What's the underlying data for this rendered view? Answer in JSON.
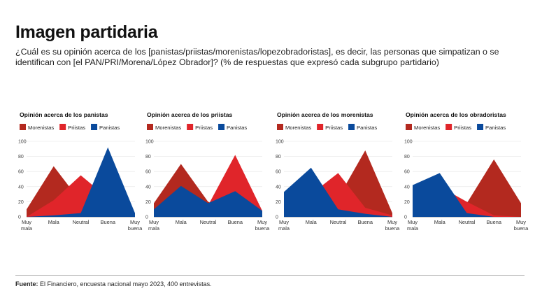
{
  "header": {
    "title": "Imagen partidaria",
    "subtitle": "¿Cuál es su opinión acerca de los [panistas/priistas/morenistas/lopezobradoristas], es decir, las personas que simpatizan o se identifican con [el PAN/PRI/Morena/López Obrador]? (% de respuestas que expresó cada subgrupo partidario)"
  },
  "footer": {
    "source_label": "Fuente:",
    "source_text": "El Financiero, encuesta nacional mayo 2023, 400 entrevistas."
  },
  "colors": {
    "Morenistas": "#b3291f",
    "Priistas": "#e0252a",
    "Panistas": "#0a4a9c"
  },
  "chart_data": [
    {
      "type": "area",
      "title": "Opinión acerca de los panistas",
      "categories": [
        "Muy mala",
        "Mala",
        "Neutral",
        "Buena",
        "Muy buena"
      ],
      "ylim": [
        0,
        100
      ],
      "yticks": [
        0,
        20,
        40,
        60,
        80,
        100
      ],
      "legend": "top-left",
      "series": [
        {
          "name": "Morenistas",
          "values": [
            10,
            67,
            20,
            2,
            0
          ]
        },
        {
          "name": "Priistas",
          "values": [
            0,
            22,
            55,
            25,
            2
          ]
        },
        {
          "name": "Panistas",
          "values": [
            0,
            2,
            5,
            92,
            5
          ]
        }
      ]
    },
    {
      "type": "area",
      "title": "Opinión acerca de los priistas",
      "categories": [
        "Muy mala",
        "Mala",
        "Neutral",
        "Buena",
        "Muy buena"
      ],
      "ylim": [
        0,
        100
      ],
      "yticks": [
        0,
        20,
        40,
        60,
        80,
        100
      ],
      "legend": "top-left",
      "series": [
        {
          "name": "Morenistas",
          "values": [
            18,
            70,
            20,
            5,
            0
          ]
        },
        {
          "name": "Priistas",
          "values": [
            5,
            18,
            15,
            82,
            8
          ]
        },
        {
          "name": "Panistas",
          "values": [
            10,
            41,
            18,
            34,
            8
          ]
        }
      ]
    },
    {
      "type": "area",
      "title": "Opinión acerca de los morenistas",
      "categories": [
        "Muy mala",
        "Mala",
        "Neutral",
        "Buena",
        "Muy buena"
      ],
      "ylim": [
        0,
        100
      ],
      "yticks": [
        0,
        20,
        40,
        60,
        80,
        100
      ],
      "legend": "top-left",
      "series": [
        {
          "name": "Morenistas",
          "values": [
            0,
            8,
            25,
            88,
            5
          ]
        },
        {
          "name": "Priistas",
          "values": [
            10,
            30,
            58,
            12,
            2
          ]
        },
        {
          "name": "Panistas",
          "values": [
            33,
            65,
            10,
            4,
            0
          ]
        }
      ]
    },
    {
      "type": "area",
      "title": "Opinión acerca de los obradoristas",
      "categories": [
        "Muy mala",
        "Mala",
        "Neutral",
        "Buena",
        "Muy buena"
      ],
      "ylim": [
        0,
        100
      ],
      "yticks": [
        0,
        20,
        40,
        60,
        80,
        100
      ],
      "legend": "top-left",
      "series": [
        {
          "name": "Morenistas",
          "values": [
            0,
            2,
            18,
            76,
            18
          ]
        },
        {
          "name": "Priistas",
          "values": [
            0,
            40,
            20,
            2,
            0
          ]
        },
        {
          "name": "Panistas",
          "values": [
            42,
            58,
            5,
            0,
            0
          ]
        }
      ]
    }
  ]
}
